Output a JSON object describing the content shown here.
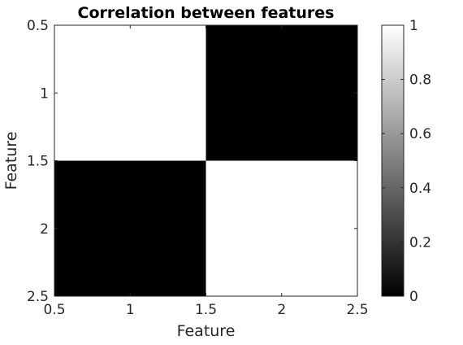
{
  "chart_data": {
    "type": "heatmap",
    "title": "Correlation between features",
    "xlabel": "Feature",
    "ylabel": "Feature",
    "x_categories": [
      1,
      2
    ],
    "y_categories": [
      1,
      2
    ],
    "values": [
      [
        1,
        0
      ],
      [
        0,
        1
      ]
    ],
    "xlim": [
      0.5,
      2.5
    ],
    "ylim": [
      0.5,
      2.5
    ],
    "y_direction": "reverse",
    "x_ticks": [
      {
        "value": 0.5,
        "label": "0.5"
      },
      {
        "value": 1,
        "label": "1"
      },
      {
        "value": 1.5,
        "label": "1.5"
      },
      {
        "value": 2,
        "label": "2"
      },
      {
        "value": 2.5,
        "label": "2.5"
      }
    ],
    "y_ticks": [
      {
        "value": 0.5,
        "label": "0.5"
      },
      {
        "value": 1,
        "label": "1"
      },
      {
        "value": 1.5,
        "label": "1.5"
      },
      {
        "value": 2,
        "label": "2"
      },
      {
        "value": 2.5,
        "label": "2.5"
      }
    ],
    "colormap": "gray",
    "colorbar": {
      "range": [
        0,
        1
      ],
      "ticks": [
        {
          "value": 0,
          "label": "0"
        },
        {
          "value": 0.2,
          "label": "0.2"
        },
        {
          "value": 0.4,
          "label": "0.4"
        },
        {
          "value": 0.6,
          "label": "0.6"
        },
        {
          "value": 0.8,
          "label": "0.8"
        },
        {
          "value": 1,
          "label": "1"
        }
      ],
      "placement": "right"
    },
    "grid": false
  }
}
